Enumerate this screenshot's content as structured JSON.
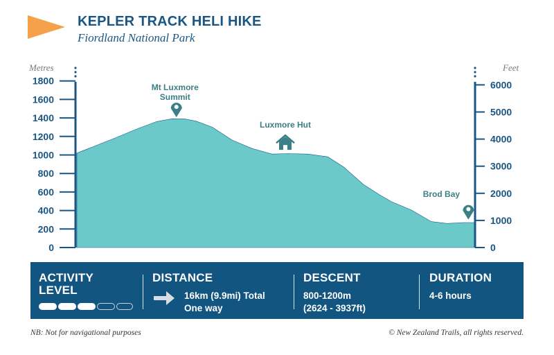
{
  "header": {
    "title": "KEPLER TRACK HELI HIKE",
    "subtitle": "Fiordland National Park"
  },
  "colors": {
    "navy": "#1a5683",
    "info_bg": "#125580",
    "fill": "#6cc9c9",
    "flag": "#f5a04a",
    "marker": "#3c7f86"
  },
  "axes": {
    "left_unit": "Metres",
    "right_unit": "Feet",
    "left_ticks": [
      "1800",
      "1600",
      "1400",
      "1200",
      "1000",
      "800",
      "600",
      "400",
      "200",
      "0"
    ],
    "right_ticks": [
      "6000",
      "5000",
      "4000",
      "3000",
      "2000",
      "1000",
      "0"
    ]
  },
  "chart_data": {
    "type": "area",
    "title": "KEPLER TRACK HELI HIKE",
    "ylabel": "Metres",
    "y2label": "Feet",
    "ylim": [
      0,
      1800
    ],
    "y2lim": [
      0,
      5906
    ],
    "x_fraction": [
      0,
      0.05,
      0.1,
      0.15,
      0.2,
      0.24,
      0.27,
      0.3,
      0.34,
      0.39,
      0.44,
      0.49,
      0.53,
      0.58,
      0.63,
      0.67,
      0.72,
      0.76,
      0.79,
      0.84,
      0.89,
      0.93,
      0.97,
      1.0
    ],
    "elevation_m": [
      1020,
      1105,
      1190,
      1280,
      1360,
      1392,
      1390,
      1365,
      1300,
      1160,
      1070,
      1010,
      1015,
      1010,
      980,
      870,
      680,
      570,
      495,
      405,
      280,
      260,
      270,
      270
    ],
    "annotations": [
      {
        "label": "Mt Luxmore Summit",
        "icon": "map-pin-icon",
        "x_fraction": 0.25,
        "elevation_m": 1392
      },
      {
        "label": "Luxmore Hut",
        "icon": "house-icon",
        "x_fraction": 0.52,
        "elevation_m": 1040
      },
      {
        "label": "Brod Bay",
        "icon": "map-pin-icon",
        "x_fraction": 0.985,
        "elevation_m": 265
      }
    ]
  },
  "info": {
    "activity": {
      "heading_line1": "ACTIVITY",
      "heading_line2": "LEVEL",
      "level": 3,
      "max_level": 5
    },
    "distance": {
      "heading": "DISTANCE",
      "line1": "16km (9.9mi) Total",
      "line2": "One way",
      "icon": "arrow-right-icon"
    },
    "descent": {
      "heading": "DESCENT",
      "line1": "800-1200m",
      "line2": "(2624 - 3937ft)"
    },
    "duration": {
      "heading": "DURATION",
      "line1": "4-6 hours"
    }
  },
  "footer": {
    "note": "NB: Not for navigational purposes",
    "copyright": "© New Zealand Trails, all rights reserved."
  }
}
